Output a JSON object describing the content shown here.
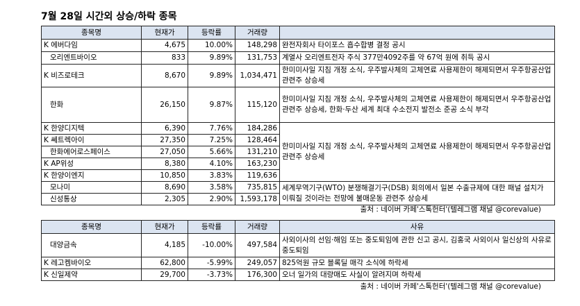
{
  "title": "7월 28일  시간외 상승/하락 종목",
  "table1": {
    "headers": [
      "종목명",
      "현재가",
      "등락률",
      "거래량",
      ""
    ],
    "rows": [
      {
        "name": "K 에버다임",
        "price": "4,675",
        "rate": "10.00%",
        "volume": "148,298",
        "reason": "완전자회사 타이포스 흡수합병 결정 공시"
      },
      {
        "name": "오리엔트바이오",
        "price": "833",
        "rate": "9.89%",
        "volume": "131,753",
        "reason": "계열사 오리엔트전자 주식 377만4092주를 약 67억 원에 취득 공시"
      },
      {
        "name": "K 비즈로테크",
        "price": "8,670",
        "rate": "9.89%",
        "volume": "1,034,471",
        "reason": "한미미사일 지침 개정 소식, 우주발사체의 고체연료 사용제한이 해제되면서 우주항공산업 관련주 상승세"
      },
      {
        "name": "한화",
        "price": "26,150",
        "rate": "9.87%",
        "volume": "115,120",
        "reason": "한미미사일 지침 개정 소식, 우주발사체의 고체연료 사용제한이 해제되면서 우주항공산업 관련주 상승세, 한화·두산 세계 최대 수소전지 발전소 준공 소식 부각"
      },
      {
        "name": "K 한양디지텍",
        "price": "6,390",
        "rate": "7.76%",
        "volume": "184,286"
      },
      {
        "name": "K 쎄트렉아이",
        "price": "27,350",
        "rate": "7.25%",
        "volume": "128,464"
      },
      {
        "name": "한화에어로스페이스",
        "price": "27,050",
        "rate": "5.66%",
        "volume": "131,210"
      },
      {
        "name": "K AP위성",
        "price": "8,380",
        "rate": "4.10%",
        "volume": "163,230"
      },
      {
        "name": "K 한양이엔지",
        "price": "10,850",
        "rate": "3.83%",
        "volume": "119,636"
      },
      {
        "name": "모나미",
        "price": "8,690",
        "rate": "3.58%",
        "volume": "735,815"
      },
      {
        "name": "신성통상",
        "price": "2,305",
        "rate": "2.90%",
        "volume": "1,593,178"
      }
    ],
    "merged_reason_rows_4_8": "한미미사일 지침 개정 소식, 우주발사체의 고체연료 사용제한이 해제되면서 우주항공산업 관련주 상승세",
    "merged_reason_rows_9_10": "세계무역기구(WTO) 분쟁해결기구(DSB) 회의에서 일본 수출규제에 대한 패널 설치가 이뤄질 것이라는 전망에 불매운동 관련주 상승세",
    "source": "출처 : 네이버 카페'스톡헌터'(텔레그램 채널 @corevalue)"
  },
  "table2": {
    "headers": [
      "종목명",
      "현재가",
      "등락률",
      "거래량",
      "사유"
    ],
    "rows": [
      {
        "name": "대양금속",
        "price": "4,185",
        "rate": "-10.00%",
        "volume": "497,584",
        "reason": "사외이사의 선임·해임 또는 중도퇴임에 관한 신고 공시, 김홍국 사외이사 일신상의 사유로 중도퇴임"
      },
      {
        "name": "K 레고켐바이오",
        "price": "62,800",
        "rate": "-5.99%",
        "volume": "249,057",
        "reason": "825억원 규모 블록딜 매각 소식에 하락세"
      },
      {
        "name": "K 신일제약",
        "price": "29,700",
        "rate": "-3.73%",
        "volume": "176,300",
        "reason": "오너 일가의 대량매도 사실이 알려지며 하락세"
      }
    ],
    "source": "출처 : 네이버 카페'스톡헌터'(텔레그램 채널 @corevalue)"
  }
}
